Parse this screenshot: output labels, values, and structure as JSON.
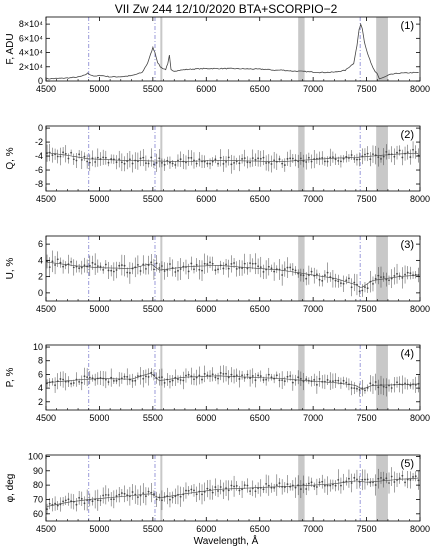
{
  "figure": {
    "title": "VII Zw 244    12/10/2020    BTA+SCORPIO−2",
    "xlabel": "Wavelength, Å",
    "colors": {
      "data": "#444444",
      "shade": "#c8c8c8",
      "marker": "#8080d0",
      "axes": "#000000"
    }
  },
  "chart_data": [
    {
      "type": "line",
      "panel_label": "(1)",
      "ylabel": "F, ADU",
      "xlim": [
        4500,
        8000
      ],
      "ylim": [
        0,
        90000
      ],
      "xticks": [
        4500,
        5000,
        5500,
        6000,
        6500,
        7000,
        7500,
        8000
      ],
      "yticks": [
        0,
        20000,
        40000,
        60000,
        80000
      ],
      "ytick_labels": [
        "0",
        "2×10⁴",
        "4×10⁴",
        "6×10⁴",
        "8×10⁴"
      ],
      "shaded_bands": [
        [
          5570,
          5585
        ],
        [
          6860,
          6920
        ],
        [
          7590,
          7700
        ]
      ],
      "vertical_markers": [
        4900,
        5520,
        7440
      ],
      "flux_points": [
        [
          4500,
          3000
        ],
        [
          4600,
          3500
        ],
        [
          4700,
          4200
        ],
        [
          4800,
          5500
        ],
        [
          4860,
          8000
        ],
        [
          4890,
          11000
        ],
        [
          4920,
          8500
        ],
        [
          4960,
          6500
        ],
        [
          5010,
          8000
        ],
        [
          5100,
          5800
        ],
        [
          5200,
          6000
        ],
        [
          5300,
          7500
        ],
        [
          5400,
          12000
        ],
        [
          5450,
          25000
        ],
        [
          5480,
          38000
        ],
        [
          5500,
          47000
        ],
        [
          5520,
          40000
        ],
        [
          5545,
          26000
        ],
        [
          5570,
          20000
        ],
        [
          5600,
          17000
        ],
        [
          5620,
          16500
        ],
        [
          5640,
          24000
        ],
        [
          5655,
          36000
        ],
        [
          5670,
          16000
        ],
        [
          5700,
          14000
        ],
        [
          5800,
          16000
        ],
        [
          5900,
          17000
        ],
        [
          6000,
          17500
        ],
        [
          6200,
          17500
        ],
        [
          6400,
          17000
        ],
        [
          6550,
          16500
        ],
        [
          6650,
          15000
        ],
        [
          6700,
          15500
        ],
        [
          6800,
          14000
        ],
        [
          6900,
          13500
        ],
        [
          7000,
          12500
        ],
        [
          7100,
          12000
        ],
        [
          7200,
          12500
        ],
        [
          7300,
          15000
        ],
        [
          7380,
          25000
        ],
        [
          7410,
          50000
        ],
        [
          7430,
          72000
        ],
        [
          7445,
          80000
        ],
        [
          7460,
          74000
        ],
        [
          7480,
          55000
        ],
        [
          7510,
          38000
        ],
        [
          7540,
          26000
        ],
        [
          7560,
          18000
        ],
        [
          7580,
          13000
        ],
        [
          7600,
          10500
        ],
        [
          7620,
          3000
        ],
        [
          7660,
          5000
        ],
        [
          7720,
          9000
        ],
        [
          7800,
          11000
        ],
        [
          7900,
          11500
        ],
        [
          8000,
          12000
        ]
      ]
    },
    {
      "type": "scatter",
      "panel_label": "(2)",
      "ylabel": "Q, %",
      "xlim": [
        4500,
        8000
      ],
      "ylim": [
        -9,
        0.3
      ],
      "xticks": [
        4500,
        5000,
        5500,
        6000,
        6500,
        7000,
        7500,
        8000
      ],
      "yticks": [
        -8,
        -6,
        -4,
        -2,
        0
      ],
      "shaded_bands": [
        [
          5570,
          5585
        ],
        [
          6860,
          6920
        ],
        [
          7590,
          7700
        ]
      ],
      "vertical_markers": [
        4900,
        5520,
        7440
      ],
      "trend": [
        [
          4500,
          -3.5
        ],
        [
          4700,
          -3.9
        ],
        [
          4900,
          -4.4
        ],
        [
          5200,
          -4.6
        ],
        [
          5500,
          -4.7
        ],
        [
          5800,
          -4.8
        ],
        [
          6100,
          -4.6
        ],
        [
          6400,
          -4.7
        ],
        [
          6700,
          -4.8
        ],
        [
          7000,
          -4.5
        ],
        [
          7200,
          -4.3
        ],
        [
          7400,
          -4.2
        ],
        [
          7550,
          -4.0
        ],
        [
          7800,
          -3.7
        ],
        [
          8000,
          -3.6
        ]
      ],
      "noise": 0.55,
      "error": 0.9
    },
    {
      "type": "scatter",
      "panel_label": "(3)",
      "ylabel": "U, %",
      "xlim": [
        4500,
        8000
      ],
      "ylim": [
        -1,
        7
      ],
      "xticks": [
        4500,
        5000,
        5500,
        6000,
        6500,
        7000,
        7500,
        8000
      ],
      "yticks": [
        0,
        2,
        4,
        6
      ],
      "shaded_bands": [
        [
          5570,
          5585
        ],
        [
          6860,
          6920
        ],
        [
          7590,
          7700
        ]
      ],
      "vertical_markers": [
        4900,
        5520,
        7440
      ],
      "trend": [
        [
          4500,
          3.8
        ],
        [
          4800,
          3.3
        ],
        [
          5000,
          3.1
        ],
        [
          5300,
          3.0
        ],
        [
          5480,
          3.6
        ],
        [
          5560,
          2.8
        ],
        [
          5800,
          3.2
        ],
        [
          6100,
          3.4
        ],
        [
          6400,
          3.1
        ],
        [
          6700,
          2.8
        ],
        [
          7000,
          2.2
        ],
        [
          7200,
          1.8
        ],
        [
          7400,
          1.0
        ],
        [
          7450,
          0.6
        ],
        [
          7550,
          1.5
        ],
        [
          7800,
          2.0
        ],
        [
          8000,
          2.2
        ]
      ],
      "noise": 0.6,
      "error": 0.9
    },
    {
      "type": "scatter",
      "panel_label": "(4)",
      "ylabel": "P, %",
      "xlim": [
        4500,
        8000
      ],
      "ylim": [
        0.8,
        10.3
      ],
      "xticks": [
        4500,
        5000,
        5500,
        6000,
        6500,
        7000,
        7500,
        8000
      ],
      "yticks": [
        2,
        4,
        6,
        8,
        10
      ],
      "shaded_bands": [
        [
          5570,
          5585
        ],
        [
          6860,
          6920
        ],
        [
          7590,
          7700
        ]
      ],
      "vertical_markers": [
        4900,
        5520,
        7440
      ],
      "trend": [
        [
          4500,
          4.8
        ],
        [
          4800,
          5.2
        ],
        [
          5000,
          5.4
        ],
        [
          5300,
          5.3
        ],
        [
          5480,
          6.2
        ],
        [
          5560,
          5.1
        ],
        [
          5800,
          5.6
        ],
        [
          6100,
          5.8
        ],
        [
          6400,
          5.6
        ],
        [
          6700,
          5.4
        ],
        [
          7000,
          5.0
        ],
        [
          7200,
          4.8
        ],
        [
          7400,
          4.4
        ],
        [
          7460,
          3.8
        ],
        [
          7550,
          4.4
        ],
        [
          7800,
          4.5
        ],
        [
          8000,
          4.6
        ]
      ],
      "noise": 0.5,
      "error": 0.9
    },
    {
      "type": "scatter",
      "panel_label": "(5)",
      "ylabel": "φ, deg",
      "xlim": [
        4500,
        8000
      ],
      "ylim": [
        55,
        101
      ],
      "xticks": [
        4500,
        5000,
        5500,
        6000,
        6500,
        7000,
        7500,
        8000
      ],
      "yticks": [
        60,
        70,
        80,
        90,
        100
      ],
      "shaded_bands": [
        [
          5570,
          5585
        ],
        [
          6860,
          6920
        ],
        [
          7590,
          7700
        ]
      ],
      "vertical_markers": [
        4900,
        5520,
        7440
      ],
      "trend": [
        [
          4500,
          65
        ],
        [
          4700,
          68
        ],
        [
          4900,
          70
        ],
        [
          5200,
          72
        ],
        [
          5480,
          74
        ],
        [
          5560,
          71
        ],
        [
          5800,
          74
        ],
        [
          6100,
          77
        ],
        [
          6400,
          78
        ],
        [
          6700,
          79
        ],
        [
          7000,
          80
        ],
        [
          7200,
          81
        ],
        [
          7400,
          83
        ],
        [
          7500,
          82
        ],
        [
          7800,
          84
        ],
        [
          8000,
          85
        ]
      ],
      "noise": 2.5,
      "error": 5
    }
  ]
}
